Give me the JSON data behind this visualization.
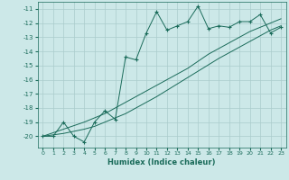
{
  "xlabel": "Humidex (Indice chaleur)",
  "bg_color": "#cce8e8",
  "grid_color": "#aacccc",
  "line_color": "#1a6b5a",
  "x_data": [
    0,
    1,
    2,
    3,
    4,
    5,
    6,
    7,
    8,
    9,
    10,
    11,
    12,
    13,
    14,
    15,
    16,
    17,
    18,
    19,
    20,
    21,
    22,
    23
  ],
  "y_main": [
    -20,
    -20,
    -19,
    -20,
    -20.4,
    -19,
    -18.2,
    -18.8,
    -14.4,
    -14.6,
    -12.7,
    -11.2,
    -12.5,
    -12.2,
    -11.9,
    -10.8,
    -12.4,
    -12.2,
    -12.3,
    -11.9,
    -11.9,
    -11.4,
    -12.7,
    -12.3
  ],
  "y_line1": [
    -20,
    -19.75,
    -19.5,
    -19.25,
    -19.0,
    -18.7,
    -18.4,
    -18.0,
    -17.6,
    -17.2,
    -16.8,
    -16.4,
    -16.0,
    -15.6,
    -15.2,
    -14.7,
    -14.2,
    -13.8,
    -13.4,
    -13.0,
    -12.6,
    -12.3,
    -12.0,
    -11.7
  ],
  "y_line2": [
    -20,
    -19.9,
    -19.8,
    -19.65,
    -19.5,
    -19.3,
    -19.0,
    -18.7,
    -18.4,
    -18.0,
    -17.6,
    -17.2,
    -16.75,
    -16.3,
    -15.85,
    -15.4,
    -14.95,
    -14.5,
    -14.1,
    -13.7,
    -13.3,
    -12.9,
    -12.5,
    -12.2
  ],
  "ylim": [
    -20.8,
    -10.5
  ],
  "xlim": [
    -0.5,
    23.5
  ],
  "yticks": [
    -20,
    -19,
    -18,
    -17,
    -16,
    -15,
    -14,
    -13,
    -12,
    -11
  ],
  "xticks": [
    0,
    1,
    2,
    3,
    4,
    5,
    6,
    7,
    8,
    9,
    10,
    11,
    12,
    13,
    14,
    15,
    16,
    17,
    18,
    19,
    20,
    21,
    22,
    23
  ]
}
